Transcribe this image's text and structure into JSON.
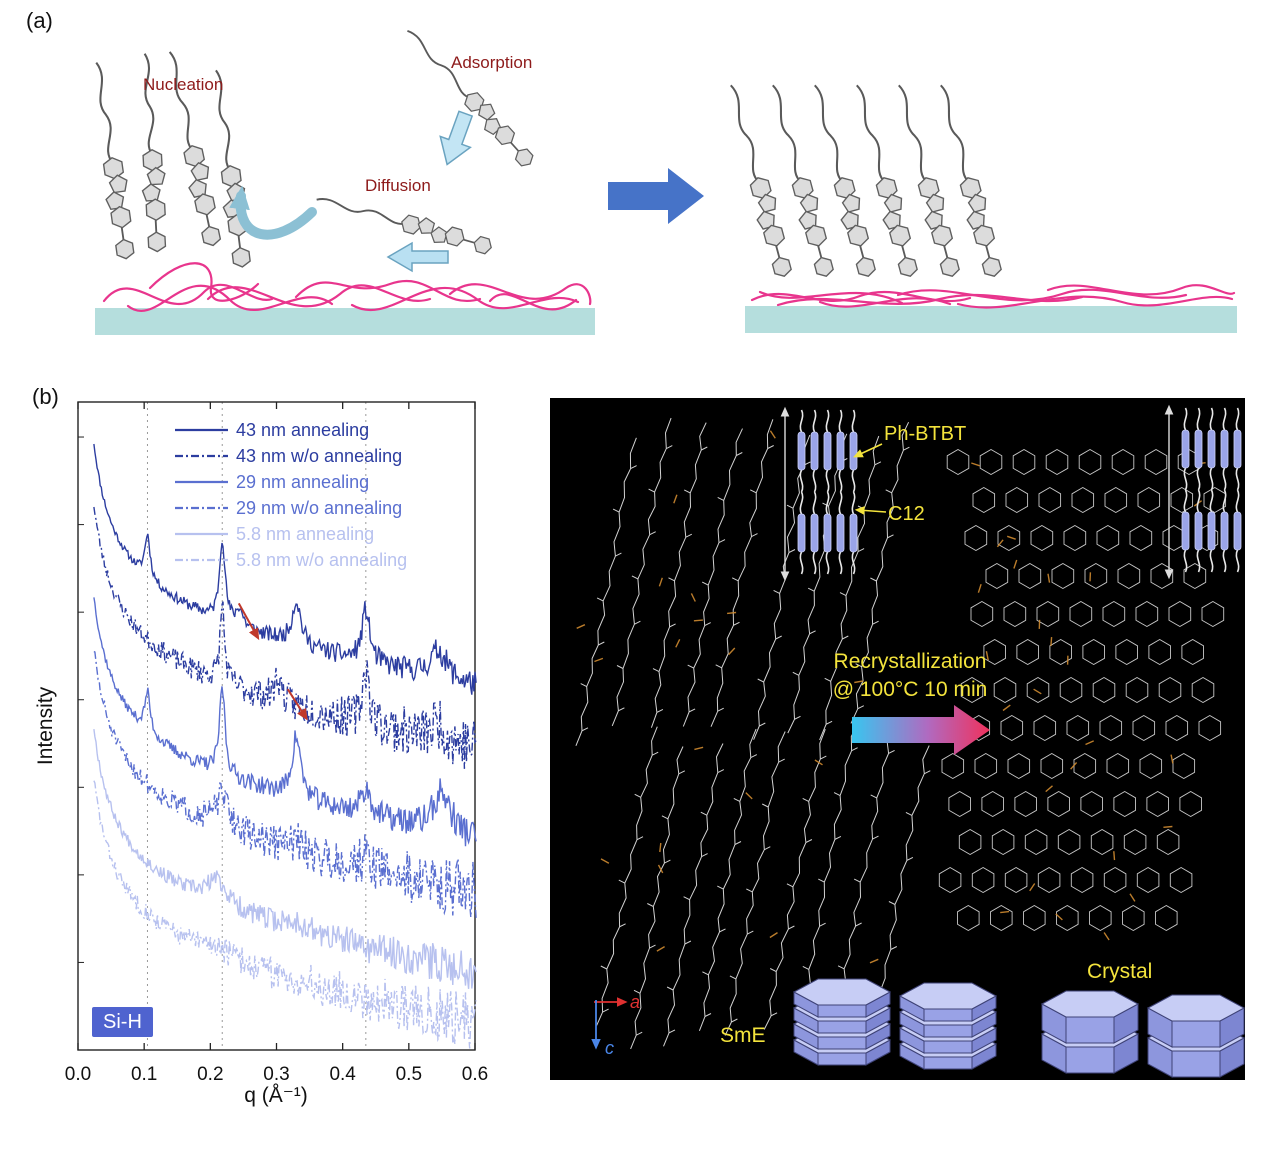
{
  "figure": {
    "panel_a": {
      "label": "(a)",
      "annotations": {
        "nucleation": "Nucleation",
        "adsorption": "Adsorption",
        "diffusion": "Diffusion"
      },
      "colors": {
        "substrate_teal": "#b5dedd",
        "polymer_pink": "#e8358d",
        "transition_arrow_blue": "#4673c8",
        "kinetic_arrow_blue": "#bfe3f4",
        "label_dark_red": "#8e1b1b",
        "molecule_gray": "#dcdcdc"
      }
    },
    "panel_b": {
      "label": "(b)"
    },
    "right_panel": {
      "inset_labels": {
        "ph_btbt": "Ph-BTBT",
        "c12": "C12"
      },
      "process_line1": "Recrystallization",
      "process_line2": "@ 100°C 10 min",
      "phase_left": "SmE",
      "phase_right": "Crystal",
      "axis_a": "a",
      "axis_c": "c",
      "colors": {
        "background": "#000000",
        "label_yellow": "#f3e33c",
        "axis_a_red": "#e03131",
        "axis_c_blue": "#4a86e8",
        "prism_top": "#c7cdf5",
        "prism_front": "#99a2e6",
        "molecule_white": "#eaeaea",
        "sulfur_orange": "#cf8a30"
      }
    }
  },
  "chart_data": {
    "type": "line",
    "title": "",
    "xlabel": "q (Å⁻¹)",
    "ylabel": "Intensity",
    "badge": "Si-H",
    "xlim": [
      0.0,
      0.6
    ],
    "xticks": [
      0.0,
      0.1,
      0.2,
      0.3,
      0.4,
      0.5,
      0.6
    ],
    "yscale": "log (arbitrary units, curves offset for clarity)",
    "vrange": [
      0,
      7.4
    ],
    "grid": "vertical dotted guides at Bragg peak positions",
    "gridlines_q": [
      0.105,
      0.218,
      0.435
    ],
    "peak_positions_q": [
      0.105,
      0.218,
      0.33,
      0.435,
      0.545
    ],
    "legend_position": "top-left inside plot",
    "series": [
      {
        "name": "43 nm annealing",
        "color": "#2c3da0",
        "style": "solid",
        "offset": 4.55,
        "noise": 0.2,
        "seed": 11,
        "peaks": [
          {
            "q": 0.105,
            "h": 0.5,
            "w": 0.005
          },
          {
            "q": 0.218,
            "h": 0.95,
            "w": 0.005
          },
          {
            "q": 0.244,
            "h": 0.2,
            "w": 0.006
          },
          {
            "q": 0.33,
            "h": 0.5,
            "w": 0.008
          },
          {
            "q": 0.435,
            "h": 0.6,
            "w": 0.007
          },
          {
            "q": 0.545,
            "h": 0.32,
            "w": 0.015
          }
        ]
      },
      {
        "name": "43 nm w/o annealing",
        "color": "#2c3da0",
        "style": "dashdot",
        "offset": 3.85,
        "noise": 0.42,
        "seed": 23,
        "peaks": [
          {
            "q": 0.218,
            "h": 0.9,
            "w": 0.004
          },
          {
            "q": 0.302,
            "h": 0.28,
            "w": 0.006
          },
          {
            "q": 0.435,
            "h": 0.65,
            "w": 0.006
          },
          {
            "q": 0.545,
            "h": 0.2,
            "w": 0.012
          }
        ]
      },
      {
        "name": "29 nm annealing",
        "color": "#5a6fd0",
        "style": "solid",
        "offset": 2.8,
        "noise": 0.24,
        "seed": 37,
        "peaks": [
          {
            "q": 0.105,
            "h": 0.45,
            "w": 0.005
          },
          {
            "q": 0.218,
            "h": 1.0,
            "w": 0.005
          },
          {
            "q": 0.33,
            "h": 0.7,
            "w": 0.008
          },
          {
            "q": 0.435,
            "h": 0.3,
            "w": 0.009
          },
          {
            "q": 0.55,
            "h": 0.45,
            "w": 0.016
          }
        ]
      },
      {
        "name": "29 nm w/o annealing",
        "color": "#5a6fd0",
        "style": "dashdot",
        "offset": 2.2,
        "noise": 0.45,
        "seed": 51,
        "peaks": [
          {
            "q": 0.218,
            "h": 0.35,
            "w": 0.012
          },
          {
            "q": 0.33,
            "h": 0.1,
            "w": 0.012
          },
          {
            "q": 0.435,
            "h": 0.12,
            "w": 0.012
          }
        ]
      },
      {
        "name": "5.8 nm annealing",
        "color": "#b7c1ef",
        "style": "solid",
        "offset": 1.3,
        "noise": 0.3,
        "seed": 67,
        "peaks": [
          {
            "q": 0.21,
            "h": 0.28,
            "w": 0.018
          },
          {
            "q": 0.33,
            "h": 0.08,
            "w": 0.02
          }
        ]
      },
      {
        "name": "5.8 nm w/o annealing",
        "color": "#b7c1ef",
        "style": "dashdot",
        "offset": 0.72,
        "noise": 0.42,
        "seed": 83,
        "peaks": [
          {
            "q": 0.21,
            "h": 0.1,
            "w": 0.025
          }
        ]
      }
    ],
    "annotations": [
      {
        "type": "arrow",
        "color": "#c0392b",
        "from": {
          "q": 0.243,
          "v": 5.1
        },
        "to": {
          "q": 0.271,
          "v": 4.72
        }
      },
      {
        "type": "arrow",
        "color": "#c0392b",
        "from": {
          "q": 0.317,
          "v": 4.12
        },
        "to": {
          "q": 0.344,
          "v": 3.8
        }
      }
    ]
  }
}
